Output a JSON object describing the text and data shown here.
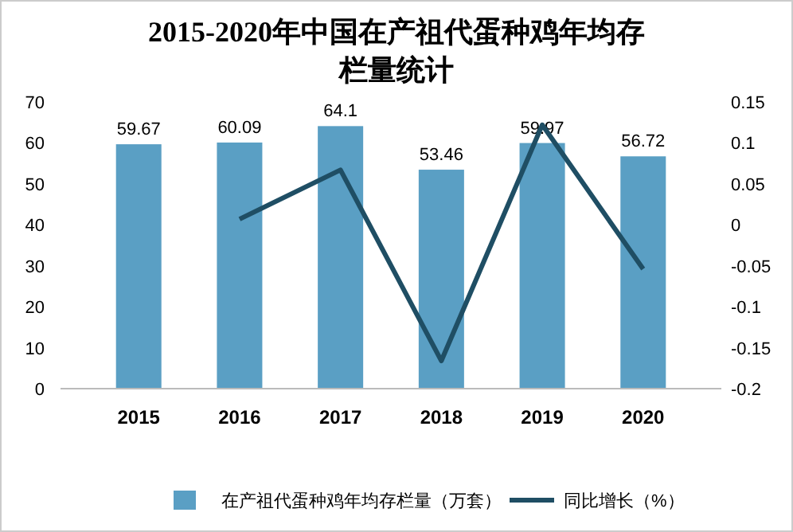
{
  "chart_data": {
    "type": "bar",
    "title": "2015-2020年中国在产祖代蛋种鸡年均存栏量统计",
    "categories": [
      "2015",
      "2016",
      "2017",
      "2018",
      "2019",
      "2020"
    ],
    "series": [
      {
        "name": "在产祖代蛋种鸡年均存栏量（万套）",
        "color": "#5a9fc4",
        "values": [
          59.67,
          60.09,
          64.1,
          53.46,
          59.97,
          56.72
        ]
      },
      {
        "name": "同比增长（%）",
        "type": "line",
        "axis": "y2",
        "color": "#1f4e64",
        "values": [
          null,
          0.007,
          0.067,
          -0.166,
          0.122,
          -0.054
        ]
      }
    ],
    "ylim": [
      0,
      70
    ],
    "yticks": [
      0,
      10,
      20,
      30,
      40,
      50,
      60,
      70
    ],
    "y2lim": [
      -0.2,
      0.15
    ],
    "y2ticks": [
      -0.2,
      -0.15,
      -0.1,
      -0.05,
      0,
      0.05,
      0.1,
      0.15
    ],
    "value_labels": [
      "59.67",
      "60.09",
      "64.1",
      "53.46",
      "59.97",
      "56.72"
    ],
    "legend": "bottom",
    "grid": false,
    "marker": "none"
  }
}
